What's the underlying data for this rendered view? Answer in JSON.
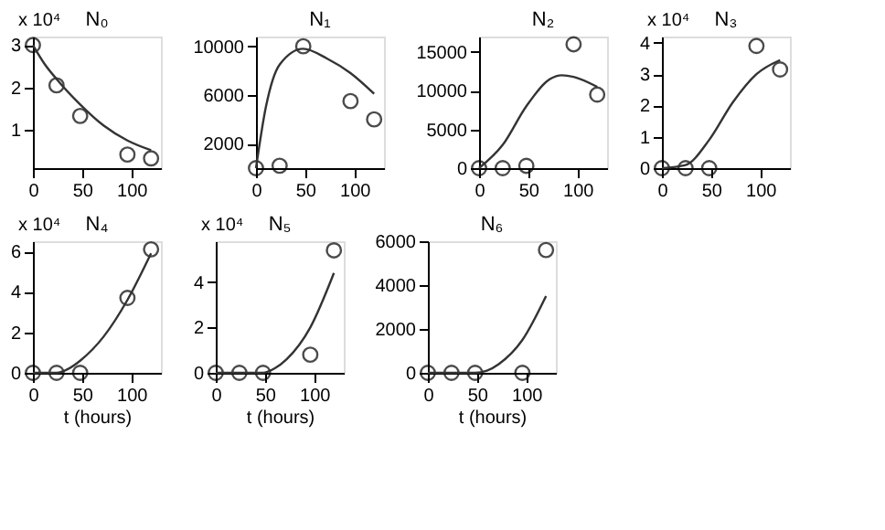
{
  "chart_data": [
    {
      "type": "scatter",
      "title": "N₀",
      "annotations": [
        "x 10⁴"
      ],
      "xlim": [
        0,
        130
      ],
      "xticks": [
        0,
        50,
        100
      ],
      "ylim": [
        0.1,
        3.2
      ],
      "yticks": [
        1,
        2,
        3
      ],
      "grid": false,
      "series": [
        {
          "type": "scatter",
          "marker": "circle",
          "color": "#000000",
          "x": [
            0,
            24,
            48,
            96,
            120
          ],
          "values": [
            3.0,
            2.05,
            1.33,
            0.42,
            0.33
          ]
        },
        {
          "type": "line",
          "color": "#333333",
          "x": [
            0,
            12,
            24,
            48,
            72,
            96,
            120
          ],
          "values": [
            3.0,
            2.55,
            2.2,
            1.6,
            1.1,
            0.75,
            0.52
          ]
        }
      ]
    },
    {
      "type": "scatter",
      "title": "N₁",
      "xlim": [
        0,
        130
      ],
      "xticks": [
        0,
        50,
        100
      ],
      "ylim": [
        0,
        10800
      ],
      "yticks": [
        2000,
        6000,
        10000
      ],
      "grid": false,
      "series": [
        {
          "type": "scatter",
          "marker": "circle",
          "color": "#000000",
          "x": [
            0,
            24,
            48,
            96,
            120
          ],
          "values": [
            0,
            200,
            10000,
            5500,
            4000
          ]
        },
        {
          "type": "line",
          "color": "#333333",
          "x": [
            0,
            10,
            24,
            48,
            72,
            96,
            120
          ],
          "values": [
            0,
            5000,
            8500,
            9800,
            9000,
            7800,
            6100
          ]
        }
      ]
    },
    {
      "type": "scatter",
      "title": "N₂",
      "xlim": [
        0,
        130
      ],
      "xticks": [
        0,
        50,
        100
      ],
      "ylim": [
        0,
        17000
      ],
      "yticks": [
        0,
        5000,
        10000,
        15000
      ],
      "grid": false,
      "series": [
        {
          "type": "scatter",
          "marker": "circle",
          "color": "#000000",
          "x": [
            0,
            24,
            48,
            96,
            120
          ],
          "values": [
            0,
            0,
            300,
            16000,
            9500
          ]
        },
        {
          "type": "line",
          "color": "#333333",
          "x": [
            0,
            24,
            48,
            72,
            84,
            96,
            120
          ],
          "values": [
            0,
            3000,
            8000,
            11500,
            12000,
            11800,
            10500
          ]
        }
      ]
    },
    {
      "type": "scatter",
      "title": "N₃",
      "annotations": [
        "x 10⁴"
      ],
      "xlim": [
        0,
        130
      ],
      "xticks": [
        0,
        50,
        100
      ],
      "ylim": [
        0,
        4.2
      ],
      "yticks": [
        0,
        1,
        2,
        3,
        4
      ],
      "grid": false,
      "series": [
        {
          "type": "scatter",
          "marker": "circle",
          "color": "#000000",
          "x": [
            0,
            24,
            48,
            96,
            120
          ],
          "values": [
            0,
            0,
            0,
            3.9,
            3.15
          ]
        },
        {
          "type": "line",
          "color": "#333333",
          "x": [
            0,
            24,
            48,
            72,
            96,
            120
          ],
          "values": [
            0,
            0.1,
            0.9,
            2.1,
            3.0,
            3.45
          ]
        }
      ]
    },
    {
      "type": "scatter",
      "title": "N₄",
      "annotations": [
        "x 10⁴"
      ],
      "xlabel": "t (hours)",
      "xlim": [
        0,
        130
      ],
      "xticks": [
        0,
        50,
        100
      ],
      "ylim": [
        0,
        6.5
      ],
      "yticks": [
        0,
        2,
        4,
        6
      ],
      "grid": false,
      "series": [
        {
          "type": "scatter",
          "marker": "circle",
          "color": "#000000",
          "x": [
            0,
            24,
            48,
            96,
            120
          ],
          "values": [
            0,
            0,
            0,
            3.7,
            6.1
          ]
        },
        {
          "type": "line",
          "color": "#333333",
          "x": [
            0,
            24,
            36,
            48,
            72,
            96,
            120
          ],
          "values": [
            0,
            0,
            0.2,
            0.6,
            1.8,
            3.6,
            5.9
          ]
        }
      ]
    },
    {
      "type": "scatter",
      "title": "N₅",
      "annotations": [
        "x 10⁴"
      ],
      "xlabel": "t (hours)",
      "xlim": [
        0,
        130
      ],
      "xticks": [
        0,
        50,
        100
      ],
      "ylim": [
        0,
        5.8
      ],
      "yticks": [
        0,
        2,
        4
      ],
      "grid": false,
      "series": [
        {
          "type": "scatter",
          "marker": "circle",
          "color": "#000000",
          "x": [
            0,
            24,
            48,
            96,
            120
          ],
          "values": [
            0,
            0,
            0,
            0.8,
            5.4
          ]
        },
        {
          "type": "line",
          "color": "#333333",
          "x": [
            0,
            48,
            60,
            72,
            96,
            120
          ],
          "values": [
            0,
            0,
            0.2,
            0.6,
            2.0,
            4.4
          ]
        }
      ]
    },
    {
      "type": "scatter",
      "title": "N₆",
      "xlabel": "t (hours)",
      "xlim": [
        0,
        130
      ],
      "xticks": [
        0,
        50,
        100
      ],
      "ylim": [
        0,
        6000
      ],
      "yticks": [
        0,
        2000,
        4000,
        6000
      ],
      "grid": false,
      "series": [
        {
          "type": "scatter",
          "marker": "circle",
          "color": "#000000",
          "x": [
            0,
            24,
            48,
            96,
            120
          ],
          "values": [
            0,
            0,
            0,
            0,
            5600
          ]
        },
        {
          "type": "line",
          "color": "#333333",
          "x": [
            0,
            48,
            60,
            72,
            96,
            120
          ],
          "values": [
            0,
            0,
            100,
            400,
            1500,
            3500
          ]
        }
      ]
    }
  ]
}
